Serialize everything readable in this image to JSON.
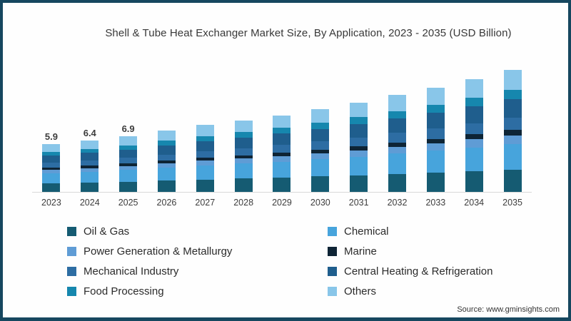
{
  "frame": {
    "border_color": "#16475f",
    "background": "#fefefe"
  },
  "title": "Shell & Tube Heat Exchanger Market Size, By Application, 2023 - 2035 (USD Billion)",
  "source_note": "Source: www.gminsights.com",
  "chart_data": {
    "type": "bar",
    "stacked": true,
    "title": "Shell & Tube Heat Exchanger Market Size, By Application, 2023 - 2035 (USD Billion)",
    "unit": "USD Billion",
    "xlabel": "",
    "ylabel": "",
    "ylim": [
      0,
      16
    ],
    "grid": false,
    "legend_position": "bottom",
    "axis_color": "#d8d8d8",
    "categories": [
      "2023",
      "2024",
      "2025",
      "2026",
      "2027",
      "2028",
      "2029",
      "2030",
      "2031",
      "2032",
      "2033",
      "2034",
      "2035"
    ],
    "totals": [
      5.9,
      6.4,
      6.9,
      7.6,
      8.3,
      8.9,
      9.5,
      10.3,
      11.1,
      12.0,
      12.9,
      14.0,
      15.1
    ],
    "bar_labels": [
      "5.9",
      "6.4",
      "6.9",
      "",
      "",
      "",
      "",
      "",
      "",
      "",
      "",
      "",
      ""
    ],
    "series": [
      {
        "name": "Oil & Gas",
        "color": "#155b72",
        "values": [
          1.09,
          1.18,
          1.28,
          1.41,
          1.54,
          1.65,
          1.76,
          1.91,
          2.05,
          2.22,
          2.39,
          2.59,
          2.79
        ]
      },
      {
        "name": "Chemical",
        "color": "#47a4dc",
        "values": [
          1.24,
          1.34,
          1.45,
          1.6,
          1.74,
          1.87,
          2.0,
          2.16,
          2.33,
          2.52,
          2.71,
          2.94,
          3.17
        ]
      },
      {
        "name": "Power Generation & Metallurgy",
        "color": "#5f9cd5",
        "values": [
          0.41,
          0.45,
          0.48,
          0.53,
          0.58,
          0.62,
          0.67,
          0.72,
          0.78,
          0.84,
          0.9,
          0.98,
          1.06
        ]
      },
      {
        "name": "Marine",
        "color": "#0e2435",
        "values": [
          0.27,
          0.29,
          0.31,
          0.34,
          0.37,
          0.4,
          0.43,
          0.46,
          0.5,
          0.54,
          0.58,
          0.63,
          0.68
        ]
      },
      {
        "name": "Mechanical Industry",
        "color": "#2d6da3",
        "values": [
          0.59,
          0.64,
          0.69,
          0.76,
          0.83,
          0.89,
          0.95,
          1.03,
          1.11,
          1.2,
          1.29,
          1.4,
          1.51
        ]
      },
      {
        "name": "Central Heating & Refrigeration",
        "color": "#1f5e8d",
        "values": [
          0.89,
          0.96,
          1.04,
          1.14,
          1.25,
          1.34,
          1.43,
          1.55,
          1.67,
          1.8,
          1.94,
          2.1,
          2.27
        ]
      },
      {
        "name": "Food Processing",
        "color": "#1687ae",
        "values": [
          0.44,
          0.48,
          0.52,
          0.57,
          0.62,
          0.67,
          0.71,
          0.77,
          0.83,
          0.9,
          0.97,
          1.05,
          1.13
        ]
      },
      {
        "name": "Others",
        "color": "#89c6e9",
        "values": [
          0.97,
          1.06,
          1.13,
          1.25,
          1.37,
          1.46,
          1.55,
          1.7,
          1.83,
          1.98,
          2.12,
          2.31,
          2.49
        ]
      }
    ]
  }
}
